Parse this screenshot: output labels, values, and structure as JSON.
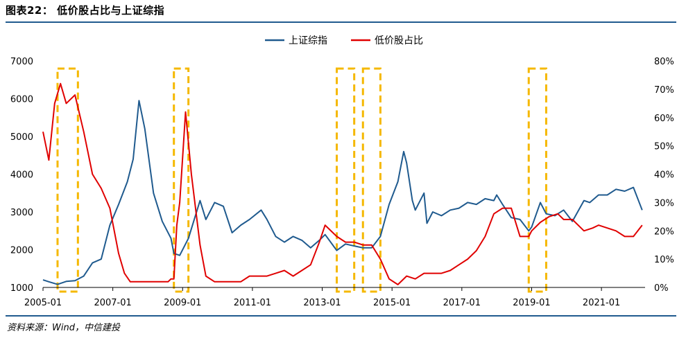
{
  "title": "图表22： 低价股占比与上证综指",
  "source": "资料来源：Wind，中信建投",
  "colors": {
    "index": "#1f5a8e",
    "ratio": "#e00000",
    "highlight": "#f5b800",
    "rule": "#1f5a8e"
  },
  "chart_data": {
    "type": "line",
    "x_ticks": [
      "2005-01",
      "2007-01",
      "2009-01",
      "2011-01",
      "2013-01",
      "2015-01",
      "2017-01",
      "2019-01",
      "2021-01"
    ],
    "y_left": {
      "min": 1000,
      "max": 7000,
      "ticks": [
        "1000",
        "2000",
        "3000",
        "4000",
        "5000",
        "6000",
        "7000"
      ]
    },
    "y_right": {
      "min": 0,
      "max": 80,
      "ticks": [
        "0%",
        "10%",
        "20%",
        "30%",
        "40%",
        "50%",
        "60%",
        "70%",
        "80%"
      ]
    },
    "legend": [
      "上证综指",
      "低价股占比"
    ],
    "highlight_periods": [
      [
        "2005-06",
        "2006-01"
      ],
      [
        "2008-10",
        "2009-03"
      ],
      [
        "2013-06",
        "2013-12"
      ],
      [
        "2014-03",
        "2014-09"
      ],
      [
        "2018-12",
        "2019-06"
      ]
    ],
    "series": [
      {
        "name": "上证综指",
        "axis": "left",
        "x": [
          "2005-01",
          "2005-03",
          "2005-06",
          "2005-09",
          "2005-12",
          "2006-03",
          "2006-06",
          "2006-09",
          "2006-12",
          "2007-03",
          "2007-06",
          "2007-08",
          "2007-10",
          "2007-12",
          "2008-03",
          "2008-06",
          "2008-09",
          "2008-10",
          "2008-12",
          "2009-03",
          "2009-07",
          "2009-09",
          "2009-12",
          "2010-03",
          "2010-06",
          "2010-09",
          "2010-12",
          "2011-04",
          "2011-06",
          "2011-09",
          "2011-12",
          "2012-03",
          "2012-06",
          "2012-09",
          "2012-12",
          "2013-02",
          "2013-06",
          "2013-09",
          "2013-12",
          "2014-03",
          "2014-06",
          "2014-09",
          "2014-12",
          "2015-03",
          "2015-05",
          "2015-06",
          "2015-08",
          "2015-09",
          "2015-12",
          "2016-01",
          "2016-03",
          "2016-06",
          "2016-09",
          "2016-12",
          "2017-03",
          "2017-06",
          "2017-09",
          "2017-12",
          "2018-01",
          "2018-03",
          "2018-06",
          "2018-09",
          "2018-12",
          "2019-01",
          "2019-04",
          "2019-06",
          "2019-09",
          "2019-12",
          "2020-03",
          "2020-07",
          "2020-09",
          "2020-12",
          "2021-03",
          "2021-06",
          "2021-09",
          "2021-12",
          "2022-03"
        ],
        "values": [
          1200,
          1150,
          1080,
          1160,
          1180,
          1300,
          1650,
          1750,
          2650,
          3200,
          3800,
          4400,
          5950,
          5200,
          3500,
          2750,
          2300,
          1900,
          1850,
          2300,
          3300,
          2800,
          3250,
          3150,
          2450,
          2650,
          2800,
          3050,
          2800,
          2350,
          2200,
          2350,
          2250,
          2050,
          2250,
          2400,
          1980,
          2150,
          2100,
          2050,
          2050,
          2350,
          3200,
          3800,
          4600,
          4300,
          3300,
          3050,
          3500,
          2700,
          3000,
          2900,
          3050,
          3100,
          3250,
          3200,
          3350,
          3300,
          3450,
          3200,
          2850,
          2800,
          2500,
          2600,
          3250,
          2950,
          2900,
          3050,
          2750,
          3300,
          3250,
          3450,
          3450,
          3600,
          3550,
          3650,
          3050
        ]
      },
      {
        "name": "低价股占比",
        "axis": "right",
        "x": [
          "2005-01",
          "2005-03",
          "2005-05",
          "2005-07",
          "2005-09",
          "2005-12",
          "2006-03",
          "2006-06",
          "2006-09",
          "2006-12",
          "2007-03",
          "2007-05",
          "2007-07",
          "2007-09",
          "2007-12",
          "2008-03",
          "2008-06",
          "2008-08",
          "2008-09",
          "2008-10",
          "2008-11",
          "2008-12",
          "2009-02",
          "2009-04",
          "2009-07",
          "2009-09",
          "2009-12",
          "2010-03",
          "2010-06",
          "2010-09",
          "2010-12",
          "2011-03",
          "2011-06",
          "2011-09",
          "2011-12",
          "2012-03",
          "2012-06",
          "2012-09",
          "2012-12",
          "2013-02",
          "2013-06",
          "2013-09",
          "2013-12",
          "2014-03",
          "2014-06",
          "2014-09",
          "2014-12",
          "2015-03",
          "2015-06",
          "2015-09",
          "2015-12",
          "2016-03",
          "2016-06",
          "2016-09",
          "2016-12",
          "2017-03",
          "2017-06",
          "2017-09",
          "2017-12",
          "2018-03",
          "2018-06",
          "2018-09",
          "2018-12",
          "2019-01",
          "2019-04",
          "2019-07",
          "2019-10",
          "2019-12",
          "2020-03",
          "2020-07",
          "2020-10",
          "2020-12",
          "2021-03",
          "2021-06",
          "2021-09",
          "2021-12",
          "2022-03"
        ],
        "values": [
          55,
          45,
          65,
          72,
          65,
          68,
          55,
          40,
          35,
          28,
          12,
          5,
          2,
          2,
          2,
          2,
          2,
          2,
          3,
          3,
          22,
          30,
          62,
          40,
          15,
          4,
          2,
          2,
          2,
          2,
          4,
          4,
          4,
          5,
          6,
          4,
          6,
          8,
          16,
          22,
          18,
          16,
          16,
          15,
          15,
          10,
          3,
          1,
          4,
          3,
          5,
          5,
          5,
          6,
          8,
          10,
          13,
          18,
          26,
          28,
          28,
          18,
          18,
          20,
          23,
          25,
          26,
          24,
          24,
          20,
          21,
          22,
          21,
          20,
          18,
          18,
          22
        ]
      }
    ]
  }
}
